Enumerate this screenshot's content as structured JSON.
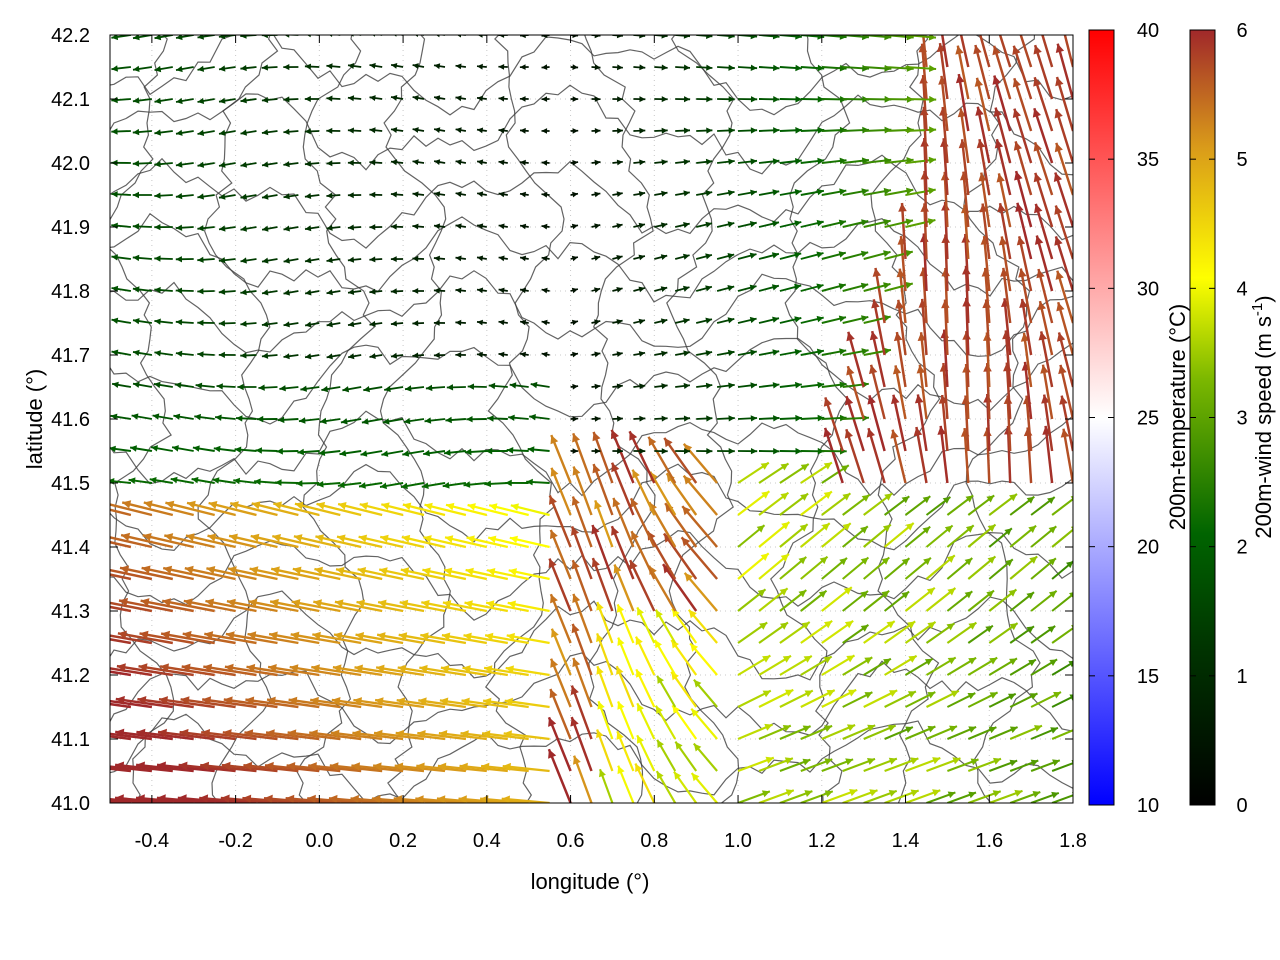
{
  "chart_data": {
    "type": "vector-field",
    "xlabel": "longitude (°)",
    "ylabel": "latitude (°)",
    "xlim": [
      -0.5,
      1.8
    ],
    "ylim": [
      41.0,
      42.2
    ],
    "x_ticks": [
      -0.4,
      -0.2,
      0.0,
      0.2,
      0.4,
      0.6,
      0.8,
      1.0,
      1.2,
      1.4,
      1.6,
      1.8
    ],
    "x_tick_labels": [
      "-0.4",
      "-0.2",
      "0.0",
      "0.2",
      "0.4",
      "0.6",
      "0.8",
      "1.0",
      "1.2",
      "1.4",
      "1.6",
      "1.8"
    ],
    "y_ticks": [
      41.0,
      41.1,
      41.2,
      41.3,
      41.4,
      41.5,
      41.6,
      41.7,
      41.8,
      41.9,
      42.0,
      42.1,
      42.2
    ],
    "y_tick_labels": [
      "41.0",
      "41.1",
      "41.2",
      "41.3",
      "41.4",
      "41.5",
      "41.6",
      "41.7",
      "41.8",
      "41.9",
      "42.0",
      "42.1",
      "42.2"
    ],
    "grid": true,
    "colorbars": [
      {
        "label": "200m-temperature (°C)",
        "range": [
          10,
          40
        ],
        "ticks": [
          10,
          15,
          20,
          25,
          30,
          35,
          40
        ],
        "tick_labels": [
          "10",
          "15",
          "20",
          "25",
          "30",
          "35",
          "40"
        ],
        "colors": [
          "#0000ff",
          "#ffffff",
          "#ff0000"
        ]
      },
      {
        "label_main": "200m-wind speed (m s",
        "label_sup": "-1",
        "label_end": ")",
        "range": [
          0,
          6
        ],
        "ticks": [
          0,
          1,
          2,
          3,
          4,
          5,
          6
        ],
        "tick_labels": [
          "0",
          "1",
          "2",
          "3",
          "4",
          "5",
          "6"
        ],
        "colors": [
          "#000000",
          "#003300",
          "#006400",
          "#7cb800",
          "#ffff00",
          "#d99a1a",
          "#a0282a"
        ]
      }
    ],
    "wind_regions": [
      {
        "region": "north-west",
        "speed_range": [
          0.2,
          2.2
        ],
        "direction": "westward"
      },
      {
        "region": "north-central",
        "speed_range": [
          0.1,
          2.0
        ],
        "direction": "eastward"
      },
      {
        "region": "north-east strip",
        "speed_range": [
          3.0,
          4.5
        ],
        "direction": "eastward"
      },
      {
        "region": "east",
        "speed_range": [
          5.5,
          6.0
        ],
        "direction": "northward"
      },
      {
        "region": "south-west",
        "speed_range": [
          4.0,
          6.0
        ],
        "direction": "westward"
      },
      {
        "region": "south-central",
        "speed_range": [
          5.0,
          6.0
        ],
        "direction": "north-westward"
      },
      {
        "region": "south-east",
        "speed_range": [
          2.5,
          4.5
        ],
        "direction": "north-eastward"
      }
    ]
  }
}
